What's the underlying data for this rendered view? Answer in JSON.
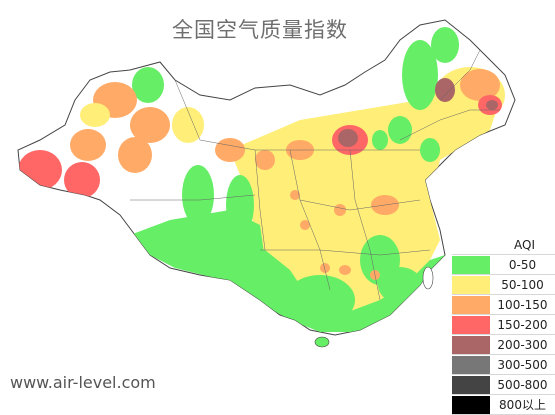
{
  "title": "全国空气质量指数",
  "watermark": "www.air-level.com",
  "legend": {
    "title": "AQI",
    "items": [
      {
        "label": "0-50",
        "color": "#66ee66"
      },
      {
        "label": "50-100",
        "color": "#ffee77"
      },
      {
        "label": "100-150",
        "color": "#ffaa66"
      },
      {
        "label": "150-200",
        "color": "#ff6666"
      },
      {
        "label": "200-300",
        "color": "#aa6666"
      },
      {
        "label": "300-500",
        "color": "#777777"
      },
      {
        "label": "500-800",
        "color": "#444444"
      },
      {
        "label": "800以上",
        "color": "#000000"
      }
    ]
  }
}
